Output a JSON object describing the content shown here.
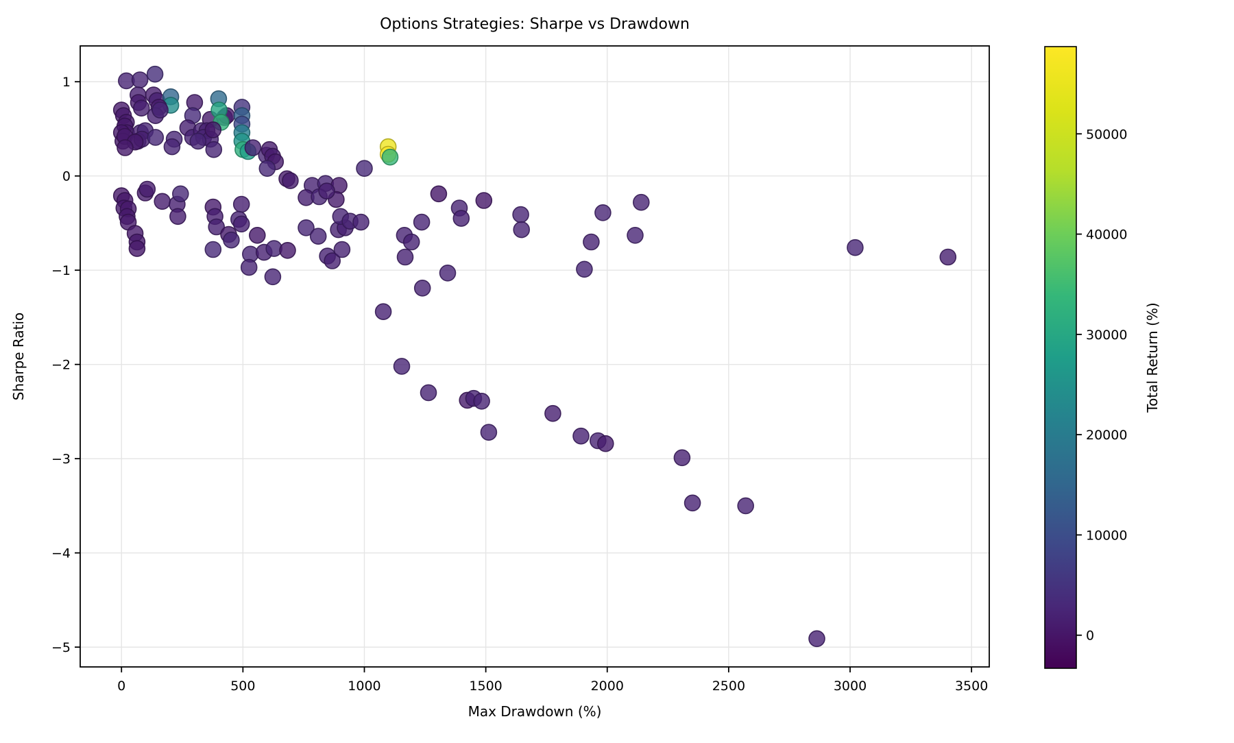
{
  "chart_data": {
    "type": "scatter",
    "title": "Options Strategies: Sharpe vs Drawdown",
    "xlabel": "Max Drawdown (%)",
    "ylabel": "Sharpe Ratio",
    "xlim": [
      -170,
      3573
    ],
    "ylim": [
      -5.21,
      1.38
    ],
    "grid": true,
    "legend_position": "none",
    "x_ticks": {
      "values": [
        0,
        500,
        1000,
        1500,
        2000,
        2500,
        3000,
        3500
      ],
      "labels": [
        "0",
        "500",
        "1000",
        "1500",
        "2000",
        "2500",
        "3000",
        "3500"
      ]
    },
    "y_ticks": {
      "values": [
        1,
        0,
        -1,
        -2,
        -3,
        -4,
        -5
      ],
      "labels": [
        "1",
        "0",
        "−1",
        "−2",
        "−3",
        "−4",
        "−5"
      ]
    },
    "colorbar": {
      "label": "Total Return (%)",
      "vmin": -3300,
      "vmax": 58700,
      "tick_values": [
        0,
        10000,
        20000,
        30000,
        40000,
        50000
      ],
      "tick_labels": [
        "0",
        "10000",
        "20000",
        "30000",
        "40000",
        "50000"
      ]
    },
    "colormap": {
      "name": "viridis",
      "stops": [
        "#440154",
        "#482878",
        "#3e4989",
        "#31688e",
        "#26828e",
        "#1f9e89",
        "#35b779",
        "#6ece58",
        "#b5de2b",
        "#dce319",
        "#fde725"
      ]
    },
    "marker": {
      "radius": 11.5,
      "opacity": 0.8
    },
    "points": [
      {
        "x": 20,
        "y": 1.01,
        "v": 2500
      },
      {
        "x": 76,
        "y": 1.02,
        "v": 2500
      },
      {
        "x": 138,
        "y": 1.08,
        "v": 4000
      },
      {
        "x": 68,
        "y": 0.86,
        "v": 1500
      },
      {
        "x": 70,
        "y": 0.78,
        "v": 1000
      },
      {
        "x": 82,
        "y": 0.72,
        "v": 1500
      },
      {
        "x": 132,
        "y": 0.86,
        "v": 1200
      },
      {
        "x": 146,
        "y": 0.8,
        "v": 1500
      },
      {
        "x": 203,
        "y": 0.84,
        "v": 15000
      },
      {
        "x": 203,
        "y": 0.75,
        "v": 24000
      },
      {
        "x": 301,
        "y": 0.78,
        "v": 1200
      },
      {
        "x": 400,
        "y": 0.82,
        "v": 16000
      },
      {
        "x": 154,
        "y": 0.73,
        "v": 800
      },
      {
        "x": 0,
        "y": 0.7,
        "v": 600
      },
      {
        "x": 8,
        "y": 0.64,
        "v": 600
      },
      {
        "x": 20,
        "y": 0.57,
        "v": 700
      },
      {
        "x": 14,
        "y": 0.53,
        "v": 500
      },
      {
        "x": 20,
        "y": 0.46,
        "v": 900
      },
      {
        "x": 140,
        "y": 0.64,
        "v": 1800
      },
      {
        "x": 159,
        "y": 0.7,
        "v": 2500
      },
      {
        "x": 293,
        "y": 0.64,
        "v": 3500
      },
      {
        "x": 366,
        "y": 0.6,
        "v": 800
      },
      {
        "x": 424,
        "y": 0.62,
        "v": 1000
      },
      {
        "x": 433,
        "y": 0.64,
        "v": 800
      },
      {
        "x": 402,
        "y": 0.7,
        "v": 30000
      },
      {
        "x": 410,
        "y": 0.57,
        "v": 33000
      },
      {
        "x": 0,
        "y": 0.46,
        "v": 500
      },
      {
        "x": 6,
        "y": 0.37,
        "v": 500
      },
      {
        "x": 14,
        "y": 0.42,
        "v": 600
      },
      {
        "x": 78,
        "y": 0.46,
        "v": 1500
      },
      {
        "x": 98,
        "y": 0.48,
        "v": 2500
      },
      {
        "x": 68,
        "y": 0.37,
        "v": 1400
      },
      {
        "x": 84,
        "y": 0.39,
        "v": 1600
      },
      {
        "x": 140,
        "y": 0.41,
        "v": 3000
      },
      {
        "x": 217,
        "y": 0.39,
        "v": 2800
      },
      {
        "x": 208,
        "y": 0.31,
        "v": 2600
      },
      {
        "x": 273,
        "y": 0.51,
        "v": 1500
      },
      {
        "x": 293,
        "y": 0.41,
        "v": 2000
      },
      {
        "x": 329,
        "y": 0.48,
        "v": 1800
      },
      {
        "x": 352,
        "y": 0.48,
        "v": 1600
      },
      {
        "x": 338,
        "y": 0.41,
        "v": 2200
      },
      {
        "x": 366,
        "y": 0.39,
        "v": 2000
      },
      {
        "x": 377,
        "y": 0.49,
        "v": 900
      },
      {
        "x": 315,
        "y": 0.37,
        "v": 2700
      },
      {
        "x": 380,
        "y": 0.28,
        "v": 2500
      },
      {
        "x": 56,
        "y": 0.36,
        "v": 700
      },
      {
        "x": 15,
        "y": 0.3,
        "v": 600
      },
      {
        "x": 496,
        "y": 0.73,
        "v": 5000
      },
      {
        "x": 496,
        "y": 0.64,
        "v": 14000
      },
      {
        "x": 496,
        "y": 0.55,
        "v": 9000
      },
      {
        "x": 496,
        "y": 0.46,
        "v": 21000
      },
      {
        "x": 496,
        "y": 0.37,
        "v": 26000
      },
      {
        "x": 500,
        "y": 0.28,
        "v": 32000
      },
      {
        "x": 521,
        "y": 0.26,
        "v": 28000
      },
      {
        "x": 541,
        "y": 0.3,
        "v": 2000
      },
      {
        "x": 597,
        "y": 0.22,
        "v": 2500
      },
      {
        "x": 609,
        "y": 0.28,
        "v": 1000
      },
      {
        "x": 622,
        "y": 0.21,
        "v": 1200
      },
      {
        "x": 634,
        "y": 0.15,
        "v": 800
      },
      {
        "x": 600,
        "y": 0.08,
        "v": 3000
      },
      {
        "x": 681,
        "y": -0.03,
        "v": 900
      },
      {
        "x": 695,
        "y": -0.05,
        "v": 1100
      },
      {
        "x": 1000,
        "y": 0.08,
        "v": 3200
      },
      {
        "x": 1098,
        "y": 0.31,
        "v": 56000
      },
      {
        "x": 1098,
        "y": 0.23,
        "v": 58000
      },
      {
        "x": 1106,
        "y": 0.2,
        "v": 34000
      },
      {
        "x": 0,
        "y": -0.21,
        "v": 400
      },
      {
        "x": 14,
        "y": -0.26,
        "v": 400
      },
      {
        "x": 10,
        "y": -0.34,
        "v": 500
      },
      {
        "x": 28,
        "y": -0.35,
        "v": 600
      },
      {
        "x": 23,
        "y": -0.43,
        "v": 500
      },
      {
        "x": 28,
        "y": -0.49,
        "v": 600
      },
      {
        "x": 56,
        "y": -0.61,
        "v": 700
      },
      {
        "x": 64,
        "y": -0.7,
        "v": 500
      },
      {
        "x": 64,
        "y": -0.77,
        "v": 300
      },
      {
        "x": 98,
        "y": -0.18,
        "v": 900
      },
      {
        "x": 106,
        "y": -0.14,
        "v": 1100
      },
      {
        "x": 168,
        "y": -0.27,
        "v": 1200
      },
      {
        "x": 229,
        "y": -0.3,
        "v": 1500
      },
      {
        "x": 232,
        "y": -0.43,
        "v": 1300
      },
      {
        "x": 243,
        "y": -0.19,
        "v": 3000
      },
      {
        "x": 377,
        "y": -0.33,
        "v": 1000
      },
      {
        "x": 385,
        "y": -0.43,
        "v": 1500
      },
      {
        "x": 391,
        "y": -0.54,
        "v": 1800
      },
      {
        "x": 377,
        "y": -0.78,
        "v": 3200
      },
      {
        "x": 441,
        "y": -0.62,
        "v": 800
      },
      {
        "x": 452,
        "y": -0.68,
        "v": 2800
      },
      {
        "x": 494,
        "y": -0.3,
        "v": 1500
      },
      {
        "x": 483,
        "y": -0.46,
        "v": 2000
      },
      {
        "x": 494,
        "y": -0.51,
        "v": 1800
      },
      {
        "x": 559,
        "y": -0.63,
        "v": 500
      },
      {
        "x": 531,
        "y": -0.83,
        "v": 2800
      },
      {
        "x": 525,
        "y": -0.97,
        "v": 2500
      },
      {
        "x": 587,
        "y": -0.81,
        "v": 1800
      },
      {
        "x": 628,
        "y": -0.77,
        "v": 2800
      },
      {
        "x": 684,
        "y": -0.79,
        "v": 600
      },
      {
        "x": 623,
        "y": -1.07,
        "v": 2500
      },
      {
        "x": 760,
        "y": -0.55,
        "v": 2800
      },
      {
        "x": 810,
        "y": -0.64,
        "v": 2500
      },
      {
        "x": 848,
        "y": -0.85,
        "v": 2000
      },
      {
        "x": 868,
        "y": -0.9,
        "v": 1800
      },
      {
        "x": 893,
        "y": -0.57,
        "v": 1900
      },
      {
        "x": 921,
        "y": -0.55,
        "v": 1800
      },
      {
        "x": 785,
        "y": -0.1,
        "v": 2000
      },
      {
        "x": 840,
        "y": -0.08,
        "v": 2500
      },
      {
        "x": 896,
        "y": -0.1,
        "v": 600
      },
      {
        "x": 760,
        "y": -0.23,
        "v": 1500
      },
      {
        "x": 814,
        "y": -0.22,
        "v": 2200
      },
      {
        "x": 884,
        "y": -0.25,
        "v": 700
      },
      {
        "x": 845,
        "y": -0.16,
        "v": 1500
      },
      {
        "x": 902,
        "y": -0.43,
        "v": 2500
      },
      {
        "x": 941,
        "y": -0.48,
        "v": 2200
      },
      {
        "x": 986,
        "y": -0.49,
        "v": 2000
      },
      {
        "x": 908,
        "y": -0.78,
        "v": 2000
      },
      {
        "x": 1165,
        "y": -0.63,
        "v": 2200
      },
      {
        "x": 1194,
        "y": -0.7,
        "v": 2000
      },
      {
        "x": 1168,
        "y": -0.86,
        "v": 2000
      },
      {
        "x": 1236,
        "y": -0.49,
        "v": 2300
      },
      {
        "x": 1239,
        "y": -1.19,
        "v": 2200
      },
      {
        "x": 1306,
        "y": -0.19,
        "v": 300
      },
      {
        "x": 1343,
        "y": -1.03,
        "v": 2500
      },
      {
        "x": 1391,
        "y": -0.34,
        "v": 2200
      },
      {
        "x": 1399,
        "y": -0.45,
        "v": 2000
      },
      {
        "x": 1492,
        "y": -0.26,
        "v": 400
      },
      {
        "x": 1644,
        "y": -0.41,
        "v": 2500
      },
      {
        "x": 1647,
        "y": -0.57,
        "v": 2200
      },
      {
        "x": 1934,
        "y": -0.7,
        "v": 2000
      },
      {
        "x": 1906,
        "y": -0.99,
        "v": 2800
      },
      {
        "x": 1982,
        "y": -0.39,
        "v": 2500
      },
      {
        "x": 2140,
        "y": -0.28,
        "v": 2200
      },
      {
        "x": 2115,
        "y": -0.63,
        "v": 2500
      },
      {
        "x": 3021,
        "y": -0.76,
        "v": 2800
      },
      {
        "x": 3403,
        "y": -0.86,
        "v": 1500
      },
      {
        "x": 1078,
        "y": -1.44,
        "v": 2000
      },
      {
        "x": 1154,
        "y": -2.02,
        "v": 2500
      },
      {
        "x": 1264,
        "y": -2.3,
        "v": 2200
      },
      {
        "x": 1424,
        "y": -2.38,
        "v": 800
      },
      {
        "x": 1450,
        "y": -2.36,
        "v": 2000
      },
      {
        "x": 1483,
        "y": -2.39,
        "v": 2200
      },
      {
        "x": 1512,
        "y": -2.72,
        "v": 2500
      },
      {
        "x": 1776,
        "y": -2.52,
        "v": 1500
      },
      {
        "x": 1892,
        "y": -2.76,
        "v": 2000
      },
      {
        "x": 1962,
        "y": -2.81,
        "v": 2200
      },
      {
        "x": 1993,
        "y": -2.84,
        "v": 1200
      },
      {
        "x": 2308,
        "y": -2.99,
        "v": 1800
      },
      {
        "x": 2351,
        "y": -3.47,
        "v": 2000
      },
      {
        "x": 2570,
        "y": -3.5,
        "v": 2200
      },
      {
        "x": 2863,
        "y": -4.91,
        "v": 2000
      }
    ]
  },
  "style": {
    "grid_color": "#e5e5e5",
    "spine_color": "#000000",
    "background": "#ffffff"
  }
}
